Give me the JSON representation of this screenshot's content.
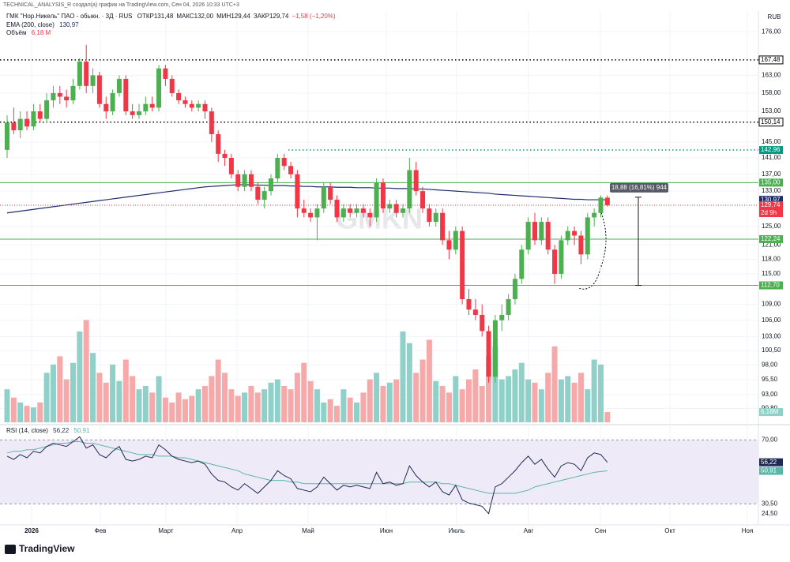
{
  "header": {
    "credit": "TECHNICAL_ANALYSIS_R создал(а) график на TradingView.com, Сен 04, 2026 10:33 UTC+3",
    "brand": "TradingView"
  },
  "chart_data": {
    "type": "candlestick",
    "symbol": "ГМК \"Нор.Никель\" ПАО - обыкн. · 3Д · RUS",
    "ohlc_legend": [
      "ОТКР131,48",
      "МАКС132,00",
      "МИН129,44",
      "ЗАКР129,74",
      "−1,58 (−1,20%)"
    ],
    "ema_label": "EMA (200, close)",
    "ema_value_label": "130,97",
    "volume_label": "Объём",
    "volume_value_label": "6,18 M",
    "watermark": "GMKN",
    "currency": "RUB",
    "log_scale": true,
    "ylim": [
      88.6,
      182.5
    ],
    "yticks": [
      {
        "value": 176,
        "label": "176,00"
      },
      {
        "value": 163,
        "label": "163,00"
      },
      {
        "value": 158,
        "label": "158,00"
      },
      {
        "value": 153,
        "label": "153,00"
      },
      {
        "value": 145,
        "label": "145,00"
      },
      {
        "value": 141,
        "label": "141,00"
      },
      {
        "value": 137,
        "label": "137,00"
      },
      {
        "value": 133,
        "label": "133,00"
      },
      {
        "value": 125,
        "label": "125,00"
      },
      {
        "value": 121,
        "label": "121,00"
      },
      {
        "value": 118,
        "label": "118,00"
      },
      {
        "value": 115,
        "label": "115,00"
      },
      {
        "value": 109,
        "label": "109,00"
      },
      {
        "value": 106,
        "label": "106,00"
      },
      {
        "value": 103,
        "label": "103,00"
      },
      {
        "value": 100.5,
        "label": "100,50"
      },
      {
        "value": 98,
        "label": "98,00"
      },
      {
        "value": 95.5,
        "label": "95,50"
      },
      {
        "value": 93,
        "label": "93,00"
      },
      {
        "value": 90.8,
        "label": "90,80"
      }
    ],
    "months": [
      "2026",
      "Фев",
      "Март",
      "Апр",
      "Май",
      "Июн",
      "Июль",
      "Авг",
      "Сен",
      "Окт",
      "Ноя"
    ],
    "up_color": "#4caf50",
    "down_color": "#f23645",
    "candles": [
      [
        143,
        152,
        141,
        150
      ],
      [
        150,
        154,
        147,
        148
      ],
      [
        148,
        153,
        146,
        151
      ],
      [
        151,
        153,
        148,
        149
      ],
      [
        149,
        155,
        148,
        153
      ],
      [
        153,
        155,
        150,
        151
      ],
      [
        151,
        158,
        150,
        156
      ],
      [
        156,
        160,
        154,
        158
      ],
      [
        158,
        160,
        155,
        157
      ],
      [
        157,
        159,
        154,
        156
      ],
      [
        156,
        162,
        155,
        160
      ],
      [
        160,
        168,
        159,
        167
      ],
      [
        167,
        172,
        158,
        160
      ],
      [
        160,
        165,
        158,
        163
      ],
      [
        163,
        164,
        154,
        155
      ],
      [
        155,
        157,
        151,
        153
      ],
      [
        153,
        159,
        152,
        158
      ],
      [
        158,
        163,
        157,
        162
      ],
      [
        162,
        163,
        152,
        153
      ],
      [
        153,
        155,
        151,
        152
      ],
      [
        152,
        155,
        151,
        153
      ],
      [
        153,
        157,
        152,
        155
      ],
      [
        155,
        157,
        153,
        154
      ],
      [
        154,
        166,
        153,
        165
      ],
      [
        165,
        166,
        160,
        162
      ],
      [
        162,
        163,
        157,
        158
      ],
      [
        158,
        159,
        155,
        156
      ],
      [
        156,
        157,
        154,
        155
      ],
      [
        155,
        156,
        153,
        154
      ],
      [
        154,
        156,
        153,
        155
      ],
      [
        155,
        156,
        151,
        153
      ],
      [
        153,
        154,
        145,
        147
      ],
      [
        147,
        148,
        140,
        142
      ],
      [
        142,
        143,
        139,
        141
      ],
      [
        141,
        142,
        136,
        137
      ],
      [
        137,
        138,
        133,
        134
      ],
      [
        134,
        138,
        133,
        137
      ],
      [
        137,
        138,
        133,
        134
      ],
      [
        134,
        135,
        130,
        131
      ],
      [
        131,
        134,
        129,
        133
      ],
      [
        133,
        137,
        132,
        136
      ],
      [
        136,
        142,
        135,
        141
      ],
      [
        141,
        142,
        138,
        139
      ],
      [
        139,
        140,
        136,
        137
      ],
      [
        137,
        138,
        127,
        129
      ],
      [
        129,
        131,
        127,
        128
      ],
      [
        128,
        129,
        126,
        127
      ],
      [
        127,
        130,
        122,
        129
      ],
      [
        129,
        135,
        128,
        134
      ],
      [
        134,
        135,
        130,
        131
      ],
      [
        131,
        132,
        126,
        127
      ],
      [
        127,
        130,
        126,
        129
      ],
      [
        129,
        130,
        127,
        128
      ],
      [
        128,
        130,
        127,
        129
      ],
      [
        129,
        130,
        127,
        128
      ],
      [
        128,
        129,
        125,
        127
      ],
      [
        127,
        136,
        126,
        135
      ],
      [
        135,
        136,
        128,
        129
      ],
      [
        129,
        131,
        128,
        130
      ],
      [
        130,
        131,
        127,
        128
      ],
      [
        128,
        130,
        127,
        129
      ],
      [
        129,
        141,
        128,
        138
      ],
      [
        138,
        140,
        132,
        133
      ],
      [
        133,
        134,
        128,
        129
      ],
      [
        129,
        130,
        125,
        126
      ],
      [
        126,
        129,
        125,
        128
      ],
      [
        128,
        129,
        121,
        122
      ],
      [
        122,
        124,
        118,
        120
      ],
      [
        120,
        125,
        119,
        124
      ],
      [
        124,
        125,
        109,
        110
      ],
      [
        110,
        112,
        107,
        108
      ],
      [
        108,
        110,
        106,
        107
      ],
      [
        107,
        109,
        103,
        104
      ],
      [
        104,
        105,
        95,
        96
      ],
      [
        96,
        107,
        95,
        106
      ],
      [
        106,
        109,
        104,
        107
      ],
      [
        107,
        111,
        106,
        110
      ],
      [
        110,
        115,
        109,
        114
      ],
      [
        114,
        121,
        113,
        120
      ],
      [
        120,
        127,
        119,
        126
      ],
      [
        126,
        128,
        121,
        122
      ],
      [
        122,
        127,
        121,
        126
      ],
      [
        126,
        127,
        119,
        120
      ],
      [
        120,
        121,
        113,
        115
      ],
      [
        115,
        123,
        114,
        122
      ],
      [
        122,
        125,
        121,
        124
      ],
      [
        124,
        125,
        121,
        123
      ],
      [
        123,
        124,
        117,
        119
      ],
      [
        119,
        128,
        118,
        127
      ],
      [
        127,
        129,
        125,
        128
      ],
      [
        128,
        132,
        127,
        131.5
      ],
      [
        131.48,
        132,
        129.44,
        129.74
      ]
    ],
    "volume": {
      "ylim": [
        0,
        66
      ],
      "up_color": "#8fd0c8",
      "down_color": "#f7a8a8",
      "value_label": "6,18M",
      "values": [
        20,
        15,
        12,
        10,
        9,
        12,
        30,
        35,
        40,
        26,
        36,
        55,
        62,
        42,
        30,
        24,
        35,
        25,
        38,
        28,
        20,
        22,
        18,
        28,
        15,
        12,
        18,
        14,
        16,
        20,
        22,
        28,
        38,
        30,
        20,
        16,
        18,
        22,
        18,
        20,
        24,
        26,
        22,
        20,
        30,
        36,
        25,
        20,
        12,
        14,
        10,
        20,
        15,
        12,
        18,
        26,
        30,
        22,
        24,
        26,
        55,
        48,
        30,
        38,
        50,
        25,
        22,
        18,
        28,
        20,
        26,
        32,
        22,
        40,
        46,
        26,
        28,
        32,
        36,
        26,
        24,
        20,
        30,
        46,
        26,
        28,
        24,
        30,
        20,
        38,
        35,
        6.18
      ]
    },
    "ema": {
      "color": "#1f2d6b",
      "values": [
        128,
        128.2,
        128.4,
        128.6,
        128.8,
        129,
        129.2,
        129.4,
        129.6,
        129.8,
        130,
        130.2,
        130.4,
        130.6,
        130.8,
        131,
        131.2,
        131.4,
        131.6,
        131.8,
        132,
        132.2,
        132.4,
        132.6,
        132.8,
        133,
        133.2,
        133.4,
        133.6,
        133.8,
        134,
        134.1,
        134.2,
        134.3,
        134.4,
        134.5,
        134.5,
        134.5,
        134.4,
        134.4,
        134.3,
        134.3,
        134.3,
        134.2,
        134.2,
        134.1,
        134.1,
        134,
        134,
        134,
        133.9,
        133.9,
        133.9,
        133.8,
        133.8,
        133.8,
        133.7,
        133.7,
        133.7,
        133.6,
        133.6,
        133.6,
        133.5,
        133.5,
        133.4,
        133.3,
        133.2,
        133.1,
        133,
        132.9,
        132.8,
        132.7,
        132.6,
        132.5,
        132.3,
        132.2,
        132.1,
        132,
        131.9,
        131.8,
        131.7,
        131.6,
        131.5,
        131.4,
        131.3,
        131.2,
        131.1,
        131.1,
        131,
        131,
        131,
        130.97
      ]
    },
    "levels": [
      {
        "value": 167.48,
        "label": "167,48",
        "color": "#000000",
        "style": "dotted"
      },
      {
        "value": 150.14,
        "label": "150,14",
        "color": "#000000",
        "style": "dotted"
      },
      {
        "value": 142.96,
        "label": "142,96",
        "color": "#089981",
        "style": "dotted"
      },
      {
        "value": 135,
        "label": "135,00",
        "color": "#4caf50",
        "style": "solid"
      },
      {
        "value": 122.24,
        "label": "122,24",
        "color": "#4caf50",
        "style": "solid"
      },
      {
        "value": 112.7,
        "label": "112,70",
        "color": "#4caf50",
        "style": "solid"
      }
    ],
    "last_price": {
      "value": 129.74,
      "label": "129,74",
      "countdown": "2d 9h",
      "color": "#f23645"
    },
    "measure": {
      "label": "18,88 (16,81%) 944",
      "from": 112.7,
      "to": 131.58
    },
    "rsi": {
      "label": "RSI (14, close)",
      "value_label": "56,22",
      "ma_value_label": "50,91",
      "color": "#1e2a55",
      "ma_color": "#5bb5a9",
      "ylim": [
        17.5,
        78.5
      ],
      "yticks": [
        {
          "value": 70,
          "label": "70,00"
        },
        {
          "value": 30.5,
          "label": "30,50"
        },
        {
          "value": 24.5,
          "label": "24,50"
        }
      ],
      "values": [
        60,
        58,
        61,
        59,
        63,
        62,
        66,
        68,
        67,
        66,
        69,
        72,
        65,
        67,
        61,
        59,
        63,
        66,
        58,
        57,
        58,
        60,
        59,
        67,
        64,
        60,
        58,
        57,
        56,
        57,
        55,
        49,
        45,
        44,
        41,
        39,
        43,
        40,
        37,
        41,
        45,
        51,
        48,
        46,
        40,
        39,
        38,
        41,
        47,
        43,
        39,
        42,
        41,
        42,
        41,
        40,
        50,
        43,
        44,
        42,
        43,
        54,
        48,
        44,
        41,
        44,
        38,
        36,
        42,
        33,
        31,
        30,
        29,
        24.5,
        41,
        43,
        47,
        51,
        56,
        60,
        55,
        58,
        52,
        47,
        54,
        56,
        55,
        51,
        59,
        62,
        61,
        56.22
      ],
      "ma": [
        62,
        63,
        63,
        64,
        64,
        65,
        66,
        67,
        68,
        68,
        69,
        69,
        68,
        68,
        67,
        66,
        65,
        64,
        63,
        62,
        61,
        61,
        61,
        60,
        60,
        60,
        59,
        59,
        58,
        57,
        56,
        55,
        54,
        53,
        52,
        51,
        49,
        48,
        47,
        46,
        45,
        45,
        45,
        44,
        44,
        43,
        43,
        43,
        43,
        43,
        43,
        43,
        43,
        43,
        43,
        43,
        43,
        43,
        43,
        43,
        43,
        44,
        44,
        44,
        44,
        44,
        43,
        43,
        42,
        41,
        40,
        39,
        38,
        37,
        37,
        37,
        37,
        37,
        38,
        39,
        41,
        42,
        43,
        44,
        45,
        46,
        47,
        48,
        49,
        50,
        50.5,
        50.91
      ]
    }
  }
}
